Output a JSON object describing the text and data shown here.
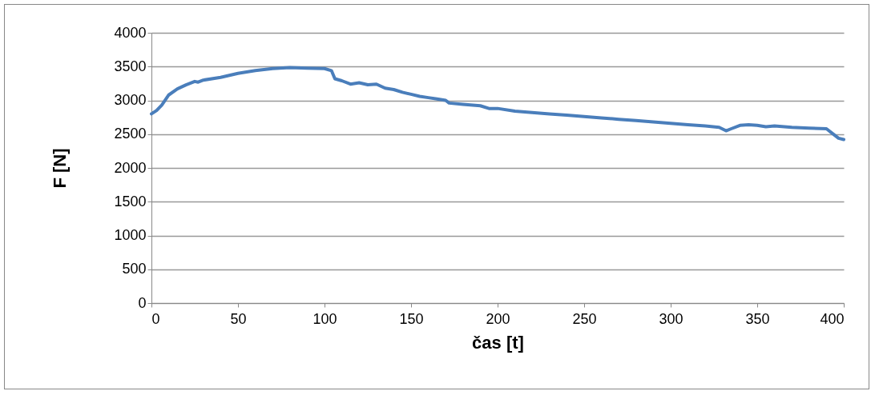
{
  "chart_data": {
    "type": "line",
    "xlabel": "čas [t]",
    "ylabel": "F [N]",
    "x": [
      0,
      3,
      6,
      10,
      15,
      20,
      25,
      27,
      30,
      40,
      50,
      60,
      70,
      80,
      90,
      100,
      104,
      106,
      110,
      115,
      120,
      125,
      130,
      135,
      140,
      145,
      150,
      155,
      160,
      165,
      170,
      172,
      180,
      190,
      195,
      200,
      210,
      220,
      230,
      240,
      250,
      260,
      270,
      280,
      290,
      300,
      310,
      320,
      328,
      332,
      335,
      340,
      345,
      350,
      355,
      360,
      370,
      380,
      390,
      393,
      397,
      400
    ],
    "series": [
      {
        "color": "#4a7ebb",
        "values": [
          2800,
          2850,
          2930,
          3080,
          3170,
          3230,
          3280,
          3270,
          3300,
          3340,
          3400,
          3440,
          3470,
          3485,
          3475,
          3470,
          3440,
          3320,
          3290,
          3240,
          3260,
          3230,
          3240,
          3180,
          3160,
          3120,
          3090,
          3060,
          3040,
          3020,
          3000,
          2960,
          2940,
          2920,
          2880,
          2880,
          2840,
          2820,
          2800,
          2780,
          2760,
          2740,
          2720,
          2700,
          2680,
          2660,
          2640,
          2620,
          2600,
          2550,
          2580,
          2630,
          2640,
          2630,
          2610,
          2620,
          2600,
          2590,
          2580,
          2520,
          2440,
          2420
        ]
      }
    ],
    "xlim": [
      0,
      400
    ],
    "xticks": [
      0,
      50,
      100,
      150,
      200,
      250,
      300,
      350,
      400
    ],
    "ylim": [
      0,
      4000
    ],
    "yticks": [
      0,
      500,
      1000,
      1500,
      2000,
      2500,
      3000,
      3500,
      4000
    ],
    "grid": "y",
    "legend": false,
    "marker": "none",
    "line_style": "solid"
  }
}
